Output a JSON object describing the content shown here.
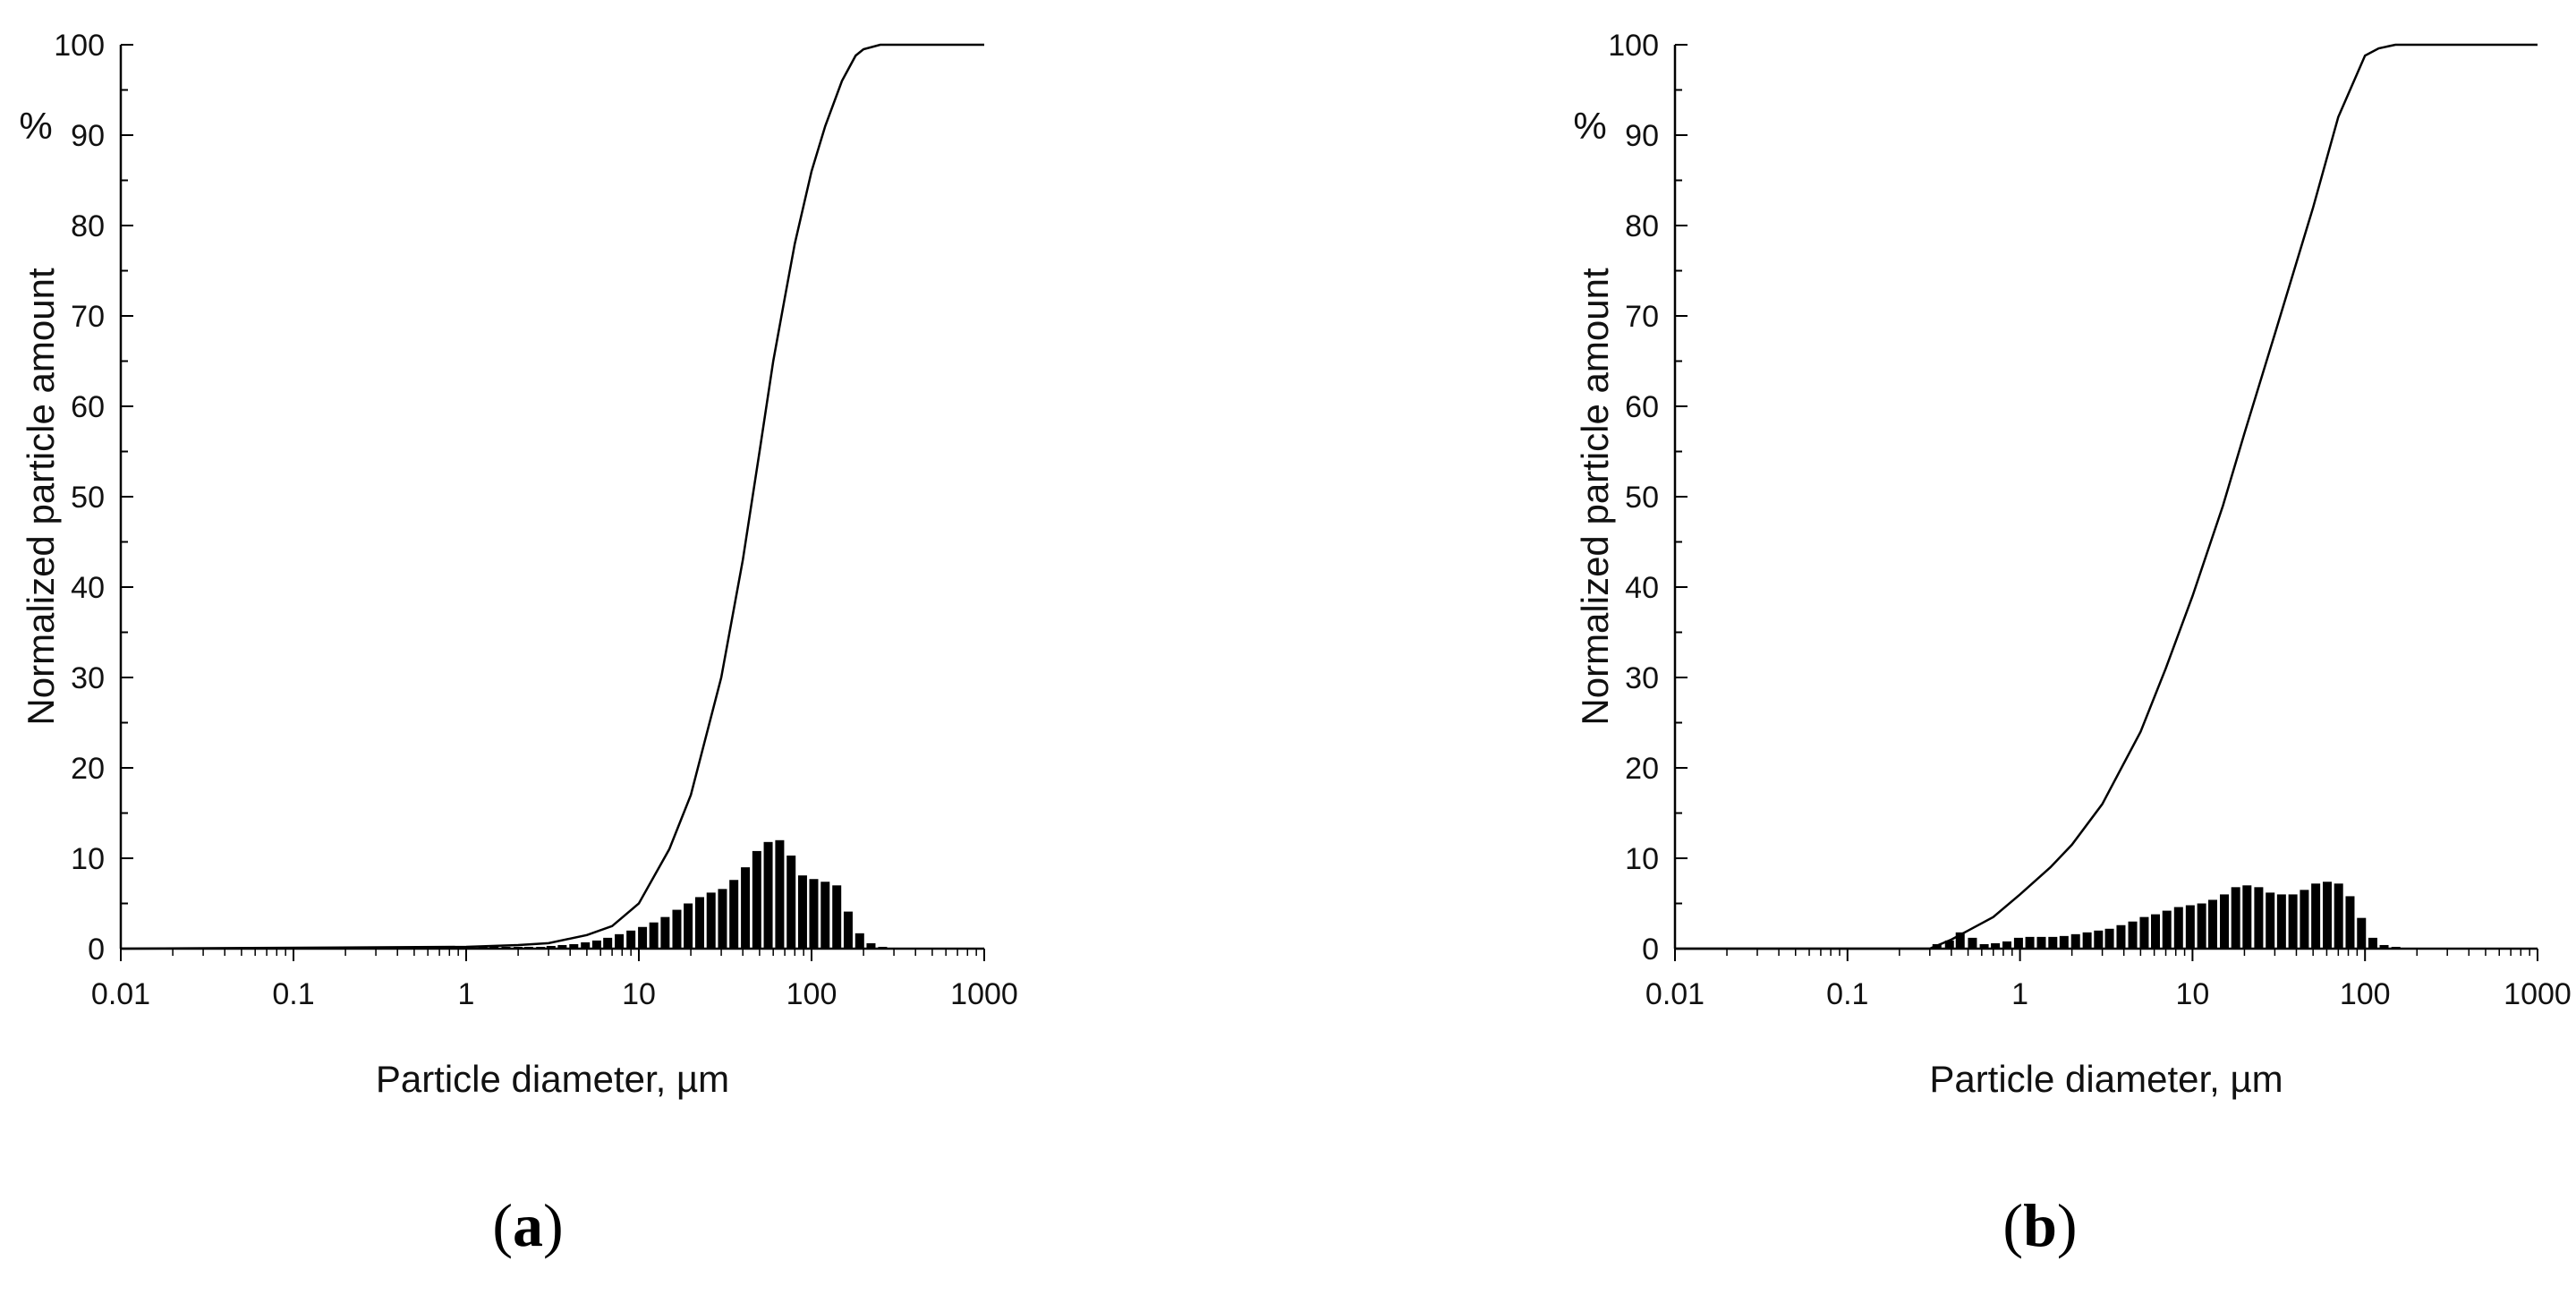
{
  "chart_data": [
    {
      "panel": "a",
      "type": "bar+line",
      "xlabel": "Particle diameter, µm",
      "ylabel": "Normalized particle amount",
      "yunit": "%",
      "x_scale": "log",
      "xlim": [
        0.01,
        1000
      ],
      "ylim": [
        0,
        100
      ],
      "xticks": [
        "0.01",
        "0.1",
        "1",
        "10",
        "100",
        "1000"
      ],
      "yticks": [
        "0",
        "10",
        "20",
        "30",
        "40",
        "50",
        "60",
        "70",
        "80",
        "90",
        "100"
      ],
      "grid": false,
      "legend": "none",
      "series": [
        {
          "kind": "bar",
          "x": [
            1.25,
            1.45,
            1.7,
            2.0,
            2.3,
            2.7,
            3.1,
            3.6,
            4.2,
            4.9,
            5.7,
            6.6,
            7.7,
            9.0,
            10.5,
            12.2,
            14.2,
            16.6,
            19.3,
            22.5,
            26.2,
            30.5,
            35.5,
            41.4,
            48.2,
            56.1,
            65.4,
            76.2,
            88.7,
            103,
            120,
            140,
            163,
            190,
            221,
            258,
            300
          ],
          "values": [
            0.2,
            0.2,
            0.2,
            0.2,
            0.2,
            0.2,
            0.3,
            0.4,
            0.5,
            0.7,
            0.9,
            1.2,
            1.6,
            2.0,
            2.4,
            2.9,
            3.5,
            4.3,
            5.0,
            5.7,
            6.2,
            6.6,
            7.6,
            9.0,
            10.8,
            11.8,
            12.0,
            10.3,
            8.1,
            7.7,
            7.4,
            7.0,
            4.1,
            1.7,
            0.6,
            0.2,
            0.1
          ]
        },
        {
          "kind": "line",
          "x": [
            0.01,
            1.0,
            2.0,
            3.0,
            5.0,
            7.0,
            10,
            15,
            20,
            30,
            40,
            50,
            60,
            70,
            80,
            100,
            120,
            150,
            180,
            200,
            250,
            300,
            1000
          ],
          "values": [
            0,
            0.2,
            0.4,
            0.6,
            1.5,
            2.5,
            5,
            11,
            17,
            30,
            43,
            55,
            65,
            72,
            78,
            86,
            91,
            96,
            98.8,
            99.5,
            100,
            100,
            100
          ]
        }
      ]
    },
    {
      "panel": "b",
      "type": "bar+line",
      "xlabel": "Particle diameter, µm",
      "ylabel": "Normalized particle amount",
      "yunit": "%",
      "x_scale": "log",
      "xlim": [
        0.01,
        1000
      ],
      "ylim": [
        0,
        100
      ],
      "xticks": [
        "0.01",
        "0.1",
        "1",
        "10",
        "100",
        "1000"
      ],
      "yticks": [
        "0",
        "10",
        "20",
        "30",
        "40",
        "50",
        "60",
        "70",
        "80",
        "90",
        "100"
      ],
      "grid": false,
      "legend": "none",
      "series": [
        {
          "kind": "bar",
          "x": [
            0.33,
            0.39,
            0.45,
            0.53,
            0.62,
            0.72,
            0.84,
            0.98,
            1.14,
            1.33,
            1.55,
            1.8,
            2.1,
            2.45,
            2.85,
            3.3,
            3.85,
            4.5,
            5.25,
            6.1,
            7.1,
            8.3,
            9.7,
            11.3,
            13.1,
            15.3,
            17.8,
            20.7,
            24.2,
            28.2,
            32.8,
            38.2,
            44.5,
            51.8,
            60.4,
            70.3,
            81.9,
            95.4,
            111,
            129,
            151
          ],
          "values": [
            0.5,
            0.9,
            1.8,
            1.2,
            0.5,
            0.6,
            0.8,
            1.2,
            1.3,
            1.3,
            1.3,
            1.4,
            1.6,
            1.8,
            2.0,
            2.2,
            2.6,
            3.0,
            3.5,
            3.8,
            4.2,
            4.6,
            4.8,
            5.0,
            5.4,
            6.0,
            6.8,
            7.0,
            6.8,
            6.2,
            6.0,
            6.0,
            6.5,
            7.2,
            7.4,
            7.2,
            5.8,
            3.4,
            1.2,
            0.4,
            0.2
          ]
        },
        {
          "kind": "line",
          "x": [
            0.01,
            0.3,
            0.4,
            0.5,
            0.7,
            1.0,
            1.5,
            2.0,
            3.0,
            5.0,
            7.0,
            10,
            15,
            20,
            30,
            50,
            70,
            100,
            120,
            150,
            1000
          ],
          "values": [
            0,
            0,
            1,
            2,
            3.5,
            6,
            9,
            11.5,
            16,
            24,
            31,
            39,
            49,
            57,
            68,
            82,
            92,
            98.8,
            99.6,
            100,
            100
          ]
        }
      ]
    }
  ]
}
